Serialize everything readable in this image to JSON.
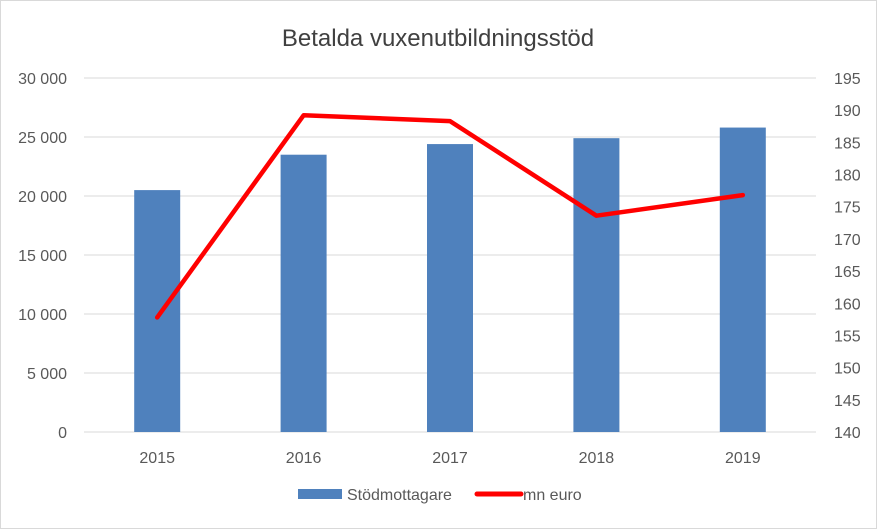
{
  "chart_data": {
    "type": "bar",
    "title": "Betalda vuxenutbildningsstöd",
    "categories": [
      "2015",
      "2016",
      "2017",
      "2018",
      "2019"
    ],
    "series": [
      {
        "name": "Stödmottagare",
        "type": "bar",
        "axis": "left",
        "color": "#4f81bd",
        "values": [
          20500,
          23500,
          24400,
          24900,
          25800
        ]
      },
      {
        "name": "mn euro",
        "type": "line",
        "axis": "right",
        "color": "#ff0000",
        "values": [
          157.8,
          189.2,
          188.3,
          173.6,
          176.8
        ]
      }
    ],
    "y_left": {
      "min": 0,
      "max": 30000,
      "ticks": [
        0,
        5000,
        10000,
        15000,
        20000,
        25000,
        30000
      ],
      "tick_labels": [
        "0",
        "5 000",
        "10 000",
        "15 000",
        "20 000",
        "25 000",
        "30 000"
      ]
    },
    "y_right": {
      "min": 140,
      "max": 195,
      "ticks": [
        140,
        145,
        150,
        155,
        160,
        165,
        170,
        175,
        180,
        185,
        190,
        195
      ],
      "tick_labels": [
        "140",
        "145",
        "150",
        "155",
        "160",
        "165",
        "170",
        "175",
        "180",
        "185",
        "190",
        "195"
      ]
    },
    "grid": true,
    "legend_position": "bottom"
  }
}
